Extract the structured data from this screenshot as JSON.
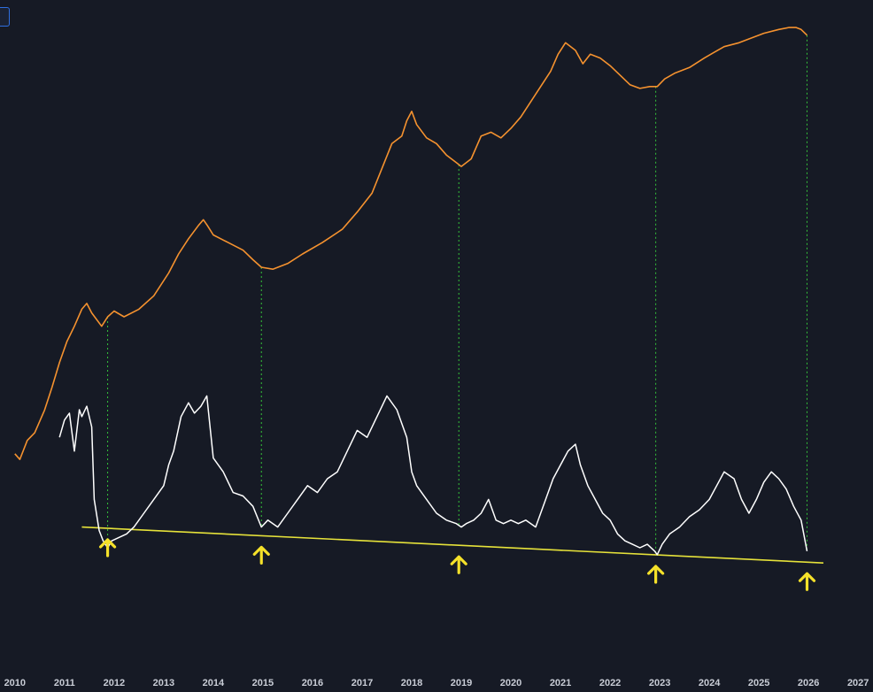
{
  "chart_data": {
    "type": "line",
    "x_tick_labels": [
      "2010",
      "2011",
      "2012",
      "2013",
      "2014",
      "2015",
      "2016",
      "2017",
      "2018",
      "2019",
      "2020",
      "2021",
      "2022",
      "2023",
      "2024",
      "2025",
      "2026",
      "2027"
    ],
    "xlim": [
      2009.7,
      2027.3
    ],
    "grid": false,
    "legend": "none",
    "colors": {
      "background": "#161a25",
      "price": "#f5922f",
      "oscillator": "#ffffff",
      "trendline": "#e6e23a",
      "cycle_markers": "#35c43a",
      "arrows": "#f5e12a",
      "ticks": "#c9cdd6"
    },
    "series": [
      {
        "role": "price",
        "x": [
          2010.0,
          2010.1,
          2010.25,
          2010.4,
          2010.6,
          2010.75,
          2010.9,
          2011.05,
          2011.2,
          2011.35,
          2011.45,
          2011.55,
          2011.75,
          2011.87,
          2012.0,
          2012.2,
          2012.5,
          2012.8,
          2013.1,
          2013.3,
          2013.5,
          2013.7,
          2013.8,
          2013.88,
          2014.0,
          2014.3,
          2014.6,
          2014.8,
          2014.97,
          2015.2,
          2015.5,
          2015.8,
          2016.2,
          2016.6,
          2016.9,
          2017.2,
          2017.4,
          2017.6,
          2017.8,
          2017.9,
          2018.0,
          2018.1,
          2018.3,
          2018.5,
          2018.7,
          2018.9,
          2019.0,
          2019.2,
          2019.4,
          2019.6,
          2019.8,
          2020.0,
          2020.2,
          2020.35,
          2020.5,
          2020.8,
          2020.95,
          2021.1,
          2021.3,
          2021.45,
          2021.6,
          2021.8,
          2022.0,
          2022.2,
          2022.4,
          2022.6,
          2022.8,
          2022.95,
          2023.1,
          2023.3,
          2023.6,
          2023.9,
          2024.1,
          2024.3,
          2024.6,
          2024.9,
          2025.1,
          2025.4,
          2025.6,
          2025.75,
          2025.85,
          2025.97
        ],
        "y": [
          1.5,
          1.2,
          2.2,
          2.6,
          3.8,
          5.0,
          6.3,
          7.4,
          8.2,
          9.1,
          9.4,
          8.9,
          8.2,
          8.7,
          9.0,
          8.7,
          9.1,
          9.8,
          11.0,
          12.0,
          12.8,
          13.5,
          13.8,
          13.5,
          13.0,
          12.6,
          12.2,
          11.7,
          11.3,
          11.2,
          11.5,
          12.0,
          12.6,
          13.3,
          14.2,
          15.2,
          16.5,
          17.8,
          18.2,
          19.0,
          19.5,
          18.8,
          18.1,
          17.8,
          17.2,
          16.8,
          16.6,
          17.0,
          18.2,
          18.4,
          18.1,
          18.6,
          19.2,
          19.8,
          20.4,
          21.6,
          22.5,
          23.1,
          22.7,
          22.0,
          22.5,
          22.3,
          21.9,
          21.4,
          20.9,
          20.7,
          20.8,
          20.8,
          21.2,
          21.5,
          21.8,
          22.3,
          22.6,
          22.9,
          23.1,
          23.4,
          23.6,
          23.8,
          23.9,
          23.9,
          23.8,
          23.5
        ]
      },
      {
        "role": "oscillator",
        "x": [
          2010.9,
          2011.0,
          2011.1,
          2011.2,
          2011.3,
          2011.35,
          2011.45,
          2011.55,
          2011.6,
          2011.7,
          2011.78,
          2011.87,
          2011.95,
          2012.1,
          2012.25,
          2012.4,
          2012.6,
          2012.8,
          2013.0,
          2013.1,
          2013.2,
          2013.35,
          2013.5,
          2013.62,
          2013.75,
          2013.87,
          2014.0,
          2014.2,
          2014.4,
          2014.6,
          2014.8,
          2014.97,
          2015.1,
          2015.3,
          2015.5,
          2015.7,
          2015.9,
          2016.1,
          2016.3,
          2016.5,
          2016.7,
          2016.9,
          2017.1,
          2017.3,
          2017.5,
          2017.7,
          2017.9,
          2018.0,
          2018.1,
          2018.3,
          2018.5,
          2018.7,
          2018.9,
          2019.0,
          2019.1,
          2019.25,
          2019.4,
          2019.55,
          2019.7,
          2019.85,
          2020.0,
          2020.15,
          2020.3,
          2020.5,
          2020.7,
          2020.85,
          2021.0,
          2021.15,
          2021.3,
          2021.4,
          2021.55,
          2021.7,
          2021.85,
          2022.0,
          2022.15,
          2022.3,
          2022.45,
          2022.6,
          2022.75,
          2022.9,
          2022.95,
          2023.05,
          2023.2,
          2023.4,
          2023.6,
          2023.8,
          2024.0,
          2024.15,
          2024.3,
          2024.5,
          2024.65,
          2024.8,
          2024.95,
          2025.1,
          2025.25,
          2025.4,
          2025.55,
          2025.7,
          2025.85,
          2025.97
        ],
        "y": [
          21,
          23.5,
          24.5,
          19,
          25,
          24,
          25.5,
          22.5,
          12,
          7.5,
          6,
          5,
          6,
          6.5,
          7,
          8,
          10,
          12,
          14,
          17,
          19,
          24,
          26,
          24.5,
          25.5,
          27,
          18,
          16,
          13,
          12.5,
          11,
          8,
          9,
          8,
          10,
          12,
          14,
          13,
          15,
          16,
          19,
          22,
          21,
          24,
          27,
          25,
          21,
          16,
          14,
          12,
          10,
          9,
          8.5,
          8,
          8.5,
          9,
          10,
          12,
          9,
          8.5,
          9,
          8.5,
          9,
          8,
          12,
          15,
          17,
          19,
          20,
          17,
          14,
          12,
          10,
          9,
          7,
          6,
          5.5,
          5,
          5.5,
          4.5,
          4,
          5.5,
          7,
          8,
          9.5,
          10.5,
          12,
          14,
          16,
          15,
          12,
          10,
          12,
          14.5,
          16,
          15,
          13.5,
          11,
          9,
          4.5
        ]
      }
    ],
    "cycle_lows": [
      2011.87,
      2014.97,
      2018.95,
      2022.92,
      2025.97
    ],
    "trendline": {
      "x": [
        2011.35,
        2026.3
      ],
      "y": [
        8,
        2.8
      ]
    }
  }
}
